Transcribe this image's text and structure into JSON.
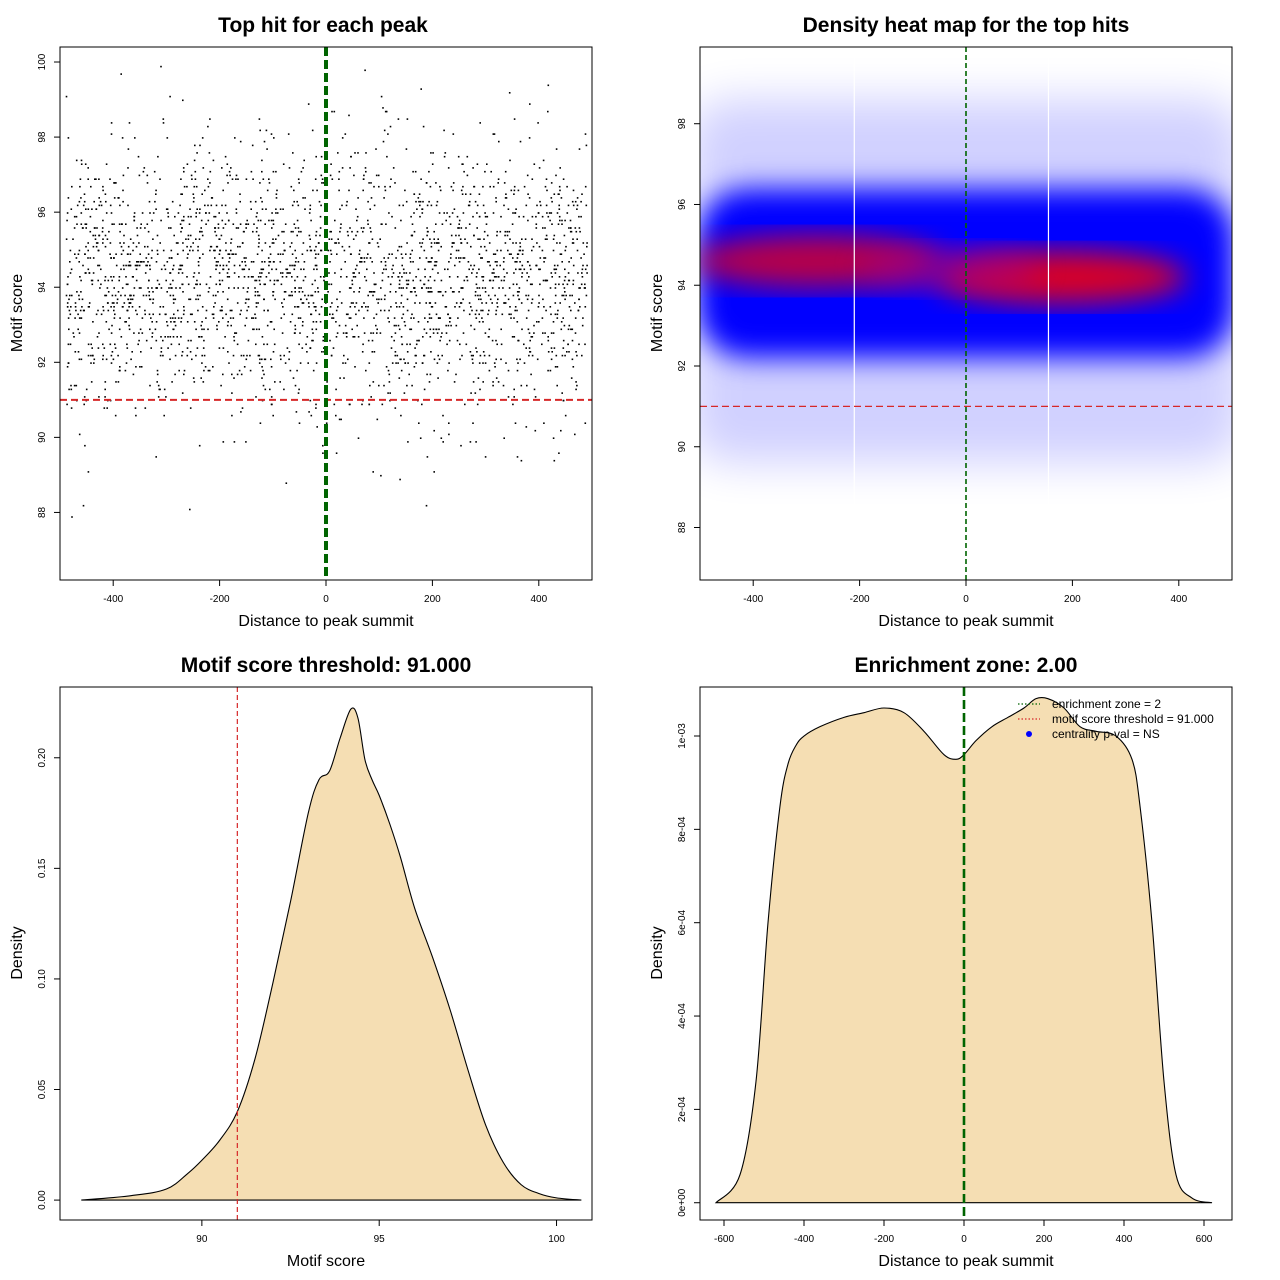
{
  "chart_data": [
    {
      "type": "scatter",
      "title": "Top hit for each peak",
      "xlabel": "Distance to peak summit",
      "ylabel": "Motif score",
      "xlim": [
        -500,
        500
      ],
      "ylim": [
        86.2,
        100.4
      ],
      "xticks": [
        -400,
        -200,
        0,
        200,
        400
      ],
      "yticks": [
        88,
        90,
        92,
        94,
        96,
        98,
        100
      ],
      "xtick_labels": [
        "-400",
        "-200",
        "0",
        "200",
        "400"
      ],
      "ytick_labels": [
        "88",
        "90",
        "92",
        "94",
        "96",
        "98",
        "100"
      ],
      "vline": {
        "x": 0,
        "color": "#006400",
        "style": "dashed"
      },
      "hline": {
        "y": 91,
        "color": "#d62728",
        "style": "dashed"
      },
      "point_color": "#000000",
      "distribution": {
        "x_range": [
          -490,
          490
        ],
        "score_mean": 94.2,
        "score_sd": 1.8,
        "score_max": 99.9,
        "score_min": 86.7,
        "density_note": "points concentrated between 92 and 96"
      }
    },
    {
      "type": "heatmap",
      "title": "Density heat map for the top hits",
      "xlabel": "Distance to peak summit",
      "ylabel": "Motif score",
      "xlim": [
        -500,
        500
      ],
      "ylim": [
        86.7,
        99.9
      ],
      "xticks": [
        -400,
        -200,
        0,
        200,
        400
      ],
      "yticks": [
        88,
        90,
        92,
        94,
        96,
        98
      ],
      "xtick_labels": [
        "-400",
        "-200",
        "0",
        "200",
        "400"
      ],
      "ytick_labels": [
        "88",
        "90",
        "92",
        "94",
        "96",
        "98"
      ],
      "vline": {
        "x": 0,
        "color": "#006400",
        "style": "dashed"
      },
      "hline": {
        "y": 91,
        "color": "#d62728",
        "style": "dashed"
      },
      "white_lines_x": [
        -210,
        155
      ],
      "colors": {
        "low": "#ffffff",
        "mid": "#0000ff",
        "high": "#ff0000"
      },
      "hotspots": [
        {
          "x": -280,
          "y": 94.6,
          "level": 0.85
        },
        {
          "x": 180,
          "y": 94.2,
          "level": 1.0
        }
      ]
    },
    {
      "type": "area",
      "title": "Motif score threshold: 91.000",
      "xlabel": "Motif score",
      "ylabel": "Density",
      "xlim": [
        86.0,
        101.0
      ],
      "ylim": [
        -0.009,
        0.232
      ],
      "xticks": [
        90,
        95,
        100
      ],
      "yticks": [
        0.0,
        0.05,
        0.1,
        0.15,
        0.2
      ],
      "xtick_labels": [
        "90",
        "95",
        "100"
      ],
      "ytick_labels": [
        "0.00",
        "0.05",
        "0.10",
        "0.15",
        "0.20"
      ],
      "vline": {
        "x": 91,
        "color": "#d62728",
        "style": "dashed"
      },
      "fill_color": "#f5deb3",
      "x": [
        86.6,
        88.0,
        89.0,
        89.6,
        90.0,
        90.5,
        91.0,
        91.5,
        92.0,
        92.5,
        93.0,
        93.3,
        93.6,
        93.9,
        94.2,
        94.4,
        94.6,
        94.8,
        95.0,
        95.3,
        95.6,
        96.0,
        96.5,
        97.0,
        97.5,
        98.0,
        98.5,
        99.0,
        99.5,
        100.0,
        100.7
      ],
      "y": [
        0.0,
        0.002,
        0.005,
        0.012,
        0.018,
        0.027,
        0.04,
        0.064,
        0.098,
        0.135,
        0.175,
        0.19,
        0.194,
        0.209,
        0.222,
        0.218,
        0.199,
        0.19,
        0.183,
        0.17,
        0.155,
        0.132,
        0.11,
        0.086,
        0.059,
        0.034,
        0.017,
        0.007,
        0.003,
        0.001,
        0.0
      ]
    },
    {
      "type": "area",
      "title": "Enrichment zone: 2.00",
      "xlabel": "Distance to peak summit",
      "ylabel": "Density",
      "xlim": [
        -660,
        670
      ],
      "ylim": [
        -3.7e-05,
        0.001105
      ],
      "xticks": [
        -600,
        -400,
        -200,
        0,
        200,
        400,
        600
      ],
      "yticks": [
        0,
        0.0002,
        0.0004,
        0.0006,
        0.0008,
        0.001
      ],
      "xtick_labels": [
        "-600",
        "-400",
        "-200",
        "0",
        "200",
        "400",
        "600"
      ],
      "ytick_labels": [
        "0e+00",
        "2e-04",
        "4e-04",
        "6e-04",
        "8e-04",
        "1e-03"
      ],
      "vline": {
        "x": 0,
        "color": "#006400",
        "style": "dashed"
      },
      "fill_color": "#f5deb3",
      "x": [
        -620,
        -560,
        -520,
        -490,
        -460,
        -440,
        -420,
        -400,
        -360,
        -300,
        -250,
        -200,
        -150,
        -100,
        -50,
        -20,
        0,
        30,
        70,
        110,
        150,
        180,
        210,
        250,
        290,
        330,
        380,
        420,
        440,
        470,
        500,
        530,
        570,
        620
      ],
      "y": [
        0.0,
        6e-05,
        0.00026,
        0.0006,
        0.00085,
        0.00094,
        0.00098,
        0.001,
        0.00102,
        0.00104,
        0.00105,
        0.00106,
        0.00105,
        0.00101,
        0.00096,
        0.00095,
        0.00096,
        0.00099,
        0.00102,
        0.00104,
        0.00106,
        0.00108,
        0.00108,
        0.00106,
        0.00102,
        0.00101,
        0.001,
        0.00095,
        0.00085,
        0.0006,
        0.00026,
        6e-05,
        1e-05,
        0.0
      ],
      "legend": {
        "position": "top-right",
        "entries": [
          {
            "label": "enrichment zone = 2",
            "color": "#006400",
            "style": "dotted-line"
          },
          {
            "label": "motif score threshold = 91.000",
            "color": "#d62728",
            "style": "dotted-line"
          },
          {
            "label": "centrality p-val = NS",
            "color": "#0000ff",
            "style": "point"
          }
        ]
      }
    }
  ]
}
